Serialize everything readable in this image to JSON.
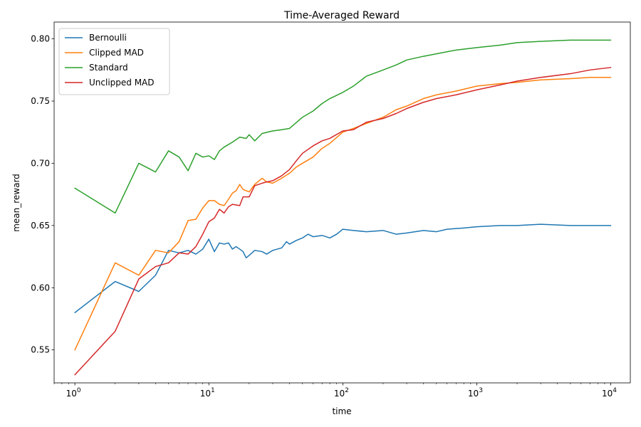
{
  "chart_data": {
    "type": "line",
    "title": "Time-Averaged Reward",
    "xlabel": "time",
    "ylabel": "mean_reward",
    "xscale": "log",
    "xlim": [
      0.7,
      14000
    ],
    "ylim": [
      0.5235,
      0.8135
    ],
    "x_ticks": [
      1,
      10,
      100,
      1000,
      10000
    ],
    "x_tick_labels": [
      {
        "base": "10",
        "exp": "0"
      },
      {
        "base": "10",
        "exp": "1"
      },
      {
        "base": "10",
        "exp": "2"
      },
      {
        "base": "10",
        "exp": "3"
      },
      {
        "base": "10",
        "exp": "4"
      }
    ],
    "y_ticks": [
      0.55,
      0.6,
      0.65,
      0.7,
      0.75,
      0.8
    ],
    "y_tick_labels": [
      "0.55",
      "0.60",
      "0.65",
      "0.70",
      "0.75",
      "0.80"
    ],
    "grid": false,
    "legend": "top-left",
    "series": [
      {
        "name": "Bernoulli",
        "color": "#1f77b4",
        "points": [
          [
            1,
            0.58
          ],
          [
            2,
            0.605
          ],
          [
            3,
            0.597
          ],
          [
            4,
            0.61
          ],
          [
            5,
            0.63
          ],
          [
            6,
            0.628
          ],
          [
            7,
            0.63
          ],
          [
            8,
            0.627
          ],
          [
            9,
            0.631
          ],
          [
            10,
            0.639
          ],
          [
            11,
            0.629
          ],
          [
            12,
            0.636
          ],
          [
            13,
            0.635
          ],
          [
            14,
            0.636
          ],
          [
            15,
            0.631
          ],
          [
            16,
            0.633
          ],
          [
            17,
            0.631
          ],
          [
            18,
            0.629
          ],
          [
            19,
            0.624
          ],
          [
            20,
            0.626
          ],
          [
            22,
            0.63
          ],
          [
            25,
            0.629
          ],
          [
            27,
            0.627
          ],
          [
            30,
            0.63
          ],
          [
            35,
            0.632
          ],
          [
            38,
            0.637
          ],
          [
            40,
            0.635
          ],
          [
            45,
            0.638
          ],
          [
            50,
            0.64
          ],
          [
            55,
            0.643
          ],
          [
            60,
            0.641
          ],
          [
            70,
            0.642
          ],
          [
            80,
            0.64
          ],
          [
            90,
            0.643
          ],
          [
            100,
            0.647
          ],
          [
            120,
            0.646
          ],
          [
            150,
            0.645
          ],
          [
            200,
            0.646
          ],
          [
            250,
            0.643
          ],
          [
            300,
            0.644
          ],
          [
            400,
            0.646
          ],
          [
            500,
            0.645
          ],
          [
            600,
            0.647
          ],
          [
            800,
            0.648
          ],
          [
            1000,
            0.649
          ],
          [
            1500,
            0.65
          ],
          [
            2000,
            0.65
          ],
          [
            3000,
            0.651
          ],
          [
            5000,
            0.65
          ],
          [
            7000,
            0.65
          ],
          [
            10000,
            0.65
          ]
        ]
      },
      {
        "name": "Clipped MAD",
        "color": "#ff7f0e",
        "points": [
          [
            1,
            0.55
          ],
          [
            2,
            0.62
          ],
          [
            3,
            0.61
          ],
          [
            4,
            0.63
          ],
          [
            5,
            0.628
          ],
          [
            6,
            0.637
          ],
          [
            7,
            0.654
          ],
          [
            8,
            0.655
          ],
          [
            9,
            0.664
          ],
          [
            10,
            0.67
          ],
          [
            11,
            0.67
          ],
          [
            12,
            0.667
          ],
          [
            13,
            0.666
          ],
          [
            14,
            0.671
          ],
          [
            15,
            0.676
          ],
          [
            16,
            0.678
          ],
          [
            17,
            0.683
          ],
          [
            18,
            0.679
          ],
          [
            20,
            0.677
          ],
          [
            22,
            0.683
          ],
          [
            25,
            0.688
          ],
          [
            27,
            0.685
          ],
          [
            30,
            0.684
          ],
          [
            35,
            0.688
          ],
          [
            40,
            0.692
          ],
          [
            45,
            0.697
          ],
          [
            50,
            0.7
          ],
          [
            60,
            0.705
          ],
          [
            70,
            0.712
          ],
          [
            80,
            0.716
          ],
          [
            100,
            0.725
          ],
          [
            120,
            0.728
          ],
          [
            150,
            0.732
          ],
          [
            200,
            0.737
          ],
          [
            250,
            0.743
          ],
          [
            300,
            0.746
          ],
          [
            400,
            0.752
          ],
          [
            500,
            0.755
          ],
          [
            700,
            0.758
          ],
          [
            1000,
            0.762
          ],
          [
            1500,
            0.764
          ],
          [
            2000,
            0.765
          ],
          [
            3000,
            0.767
          ],
          [
            5000,
            0.768
          ],
          [
            7000,
            0.769
          ],
          [
            10000,
            0.769
          ]
        ]
      },
      {
        "name": "Standard",
        "color": "#2ca02c",
        "points": [
          [
            1,
            0.68
          ],
          [
            2,
            0.66
          ],
          [
            3,
            0.7
          ],
          [
            4,
            0.693
          ],
          [
            5,
            0.71
          ],
          [
            6,
            0.705
          ],
          [
            7,
            0.694
          ],
          [
            8,
            0.708
          ],
          [
            9,
            0.705
          ],
          [
            10,
            0.706
          ],
          [
            11,
            0.703
          ],
          [
            12,
            0.71
          ],
          [
            13,
            0.713
          ],
          [
            15,
            0.717
          ],
          [
            17,
            0.721
          ],
          [
            19,
            0.72
          ],
          [
            20,
            0.723
          ],
          [
            22,
            0.718
          ],
          [
            25,
            0.724
          ],
          [
            30,
            0.726
          ],
          [
            35,
            0.727
          ],
          [
            40,
            0.728
          ],
          [
            50,
            0.737
          ],
          [
            60,
            0.742
          ],
          [
            70,
            0.748
          ],
          [
            80,
            0.752
          ],
          [
            100,
            0.757
          ],
          [
            120,
            0.762
          ],
          [
            150,
            0.77
          ],
          [
            200,
            0.775
          ],
          [
            250,
            0.779
          ],
          [
            300,
            0.783
          ],
          [
            400,
            0.786
          ],
          [
            500,
            0.788
          ],
          [
            700,
            0.791
          ],
          [
            1000,
            0.793
          ],
          [
            1500,
            0.795
          ],
          [
            2000,
            0.797
          ],
          [
            3000,
            0.798
          ],
          [
            5000,
            0.799
          ],
          [
            8000,
            0.799
          ],
          [
            10000,
            0.799
          ]
        ]
      },
      {
        "name": "Unclipped MAD",
        "color": "#d62728",
        "points": [
          [
            1,
            0.53
          ],
          [
            2,
            0.565
          ],
          [
            3,
            0.607
          ],
          [
            4,
            0.617
          ],
          [
            5,
            0.62
          ],
          [
            6,
            0.628
          ],
          [
            7,
            0.627
          ],
          [
            8,
            0.633
          ],
          [
            9,
            0.643
          ],
          [
            10,
            0.653
          ],
          [
            11,
            0.656
          ],
          [
            12,
            0.663
          ],
          [
            13,
            0.66
          ],
          [
            14,
            0.665
          ],
          [
            15,
            0.667
          ],
          [
            17,
            0.666
          ],
          [
            18,
            0.673
          ],
          [
            20,
            0.673
          ],
          [
            22,
            0.682
          ],
          [
            25,
            0.684
          ],
          [
            27,
            0.685
          ],
          [
            30,
            0.686
          ],
          [
            35,
            0.69
          ],
          [
            40,
            0.695
          ],
          [
            45,
            0.702
          ],
          [
            50,
            0.708
          ],
          [
            60,
            0.714
          ],
          [
            70,
            0.718
          ],
          [
            80,
            0.72
          ],
          [
            100,
            0.726
          ],
          [
            120,
            0.727
          ],
          [
            150,
            0.733
          ],
          [
            200,
            0.736
          ],
          [
            250,
            0.74
          ],
          [
            300,
            0.744
          ],
          [
            400,
            0.749
          ],
          [
            500,
            0.752
          ],
          [
            700,
            0.755
          ],
          [
            1000,
            0.759
          ],
          [
            1500,
            0.763
          ],
          [
            2000,
            0.766
          ],
          [
            3000,
            0.769
          ],
          [
            5000,
            0.772
          ],
          [
            7000,
            0.775
          ],
          [
            10000,
            0.777
          ]
        ]
      }
    ]
  }
}
